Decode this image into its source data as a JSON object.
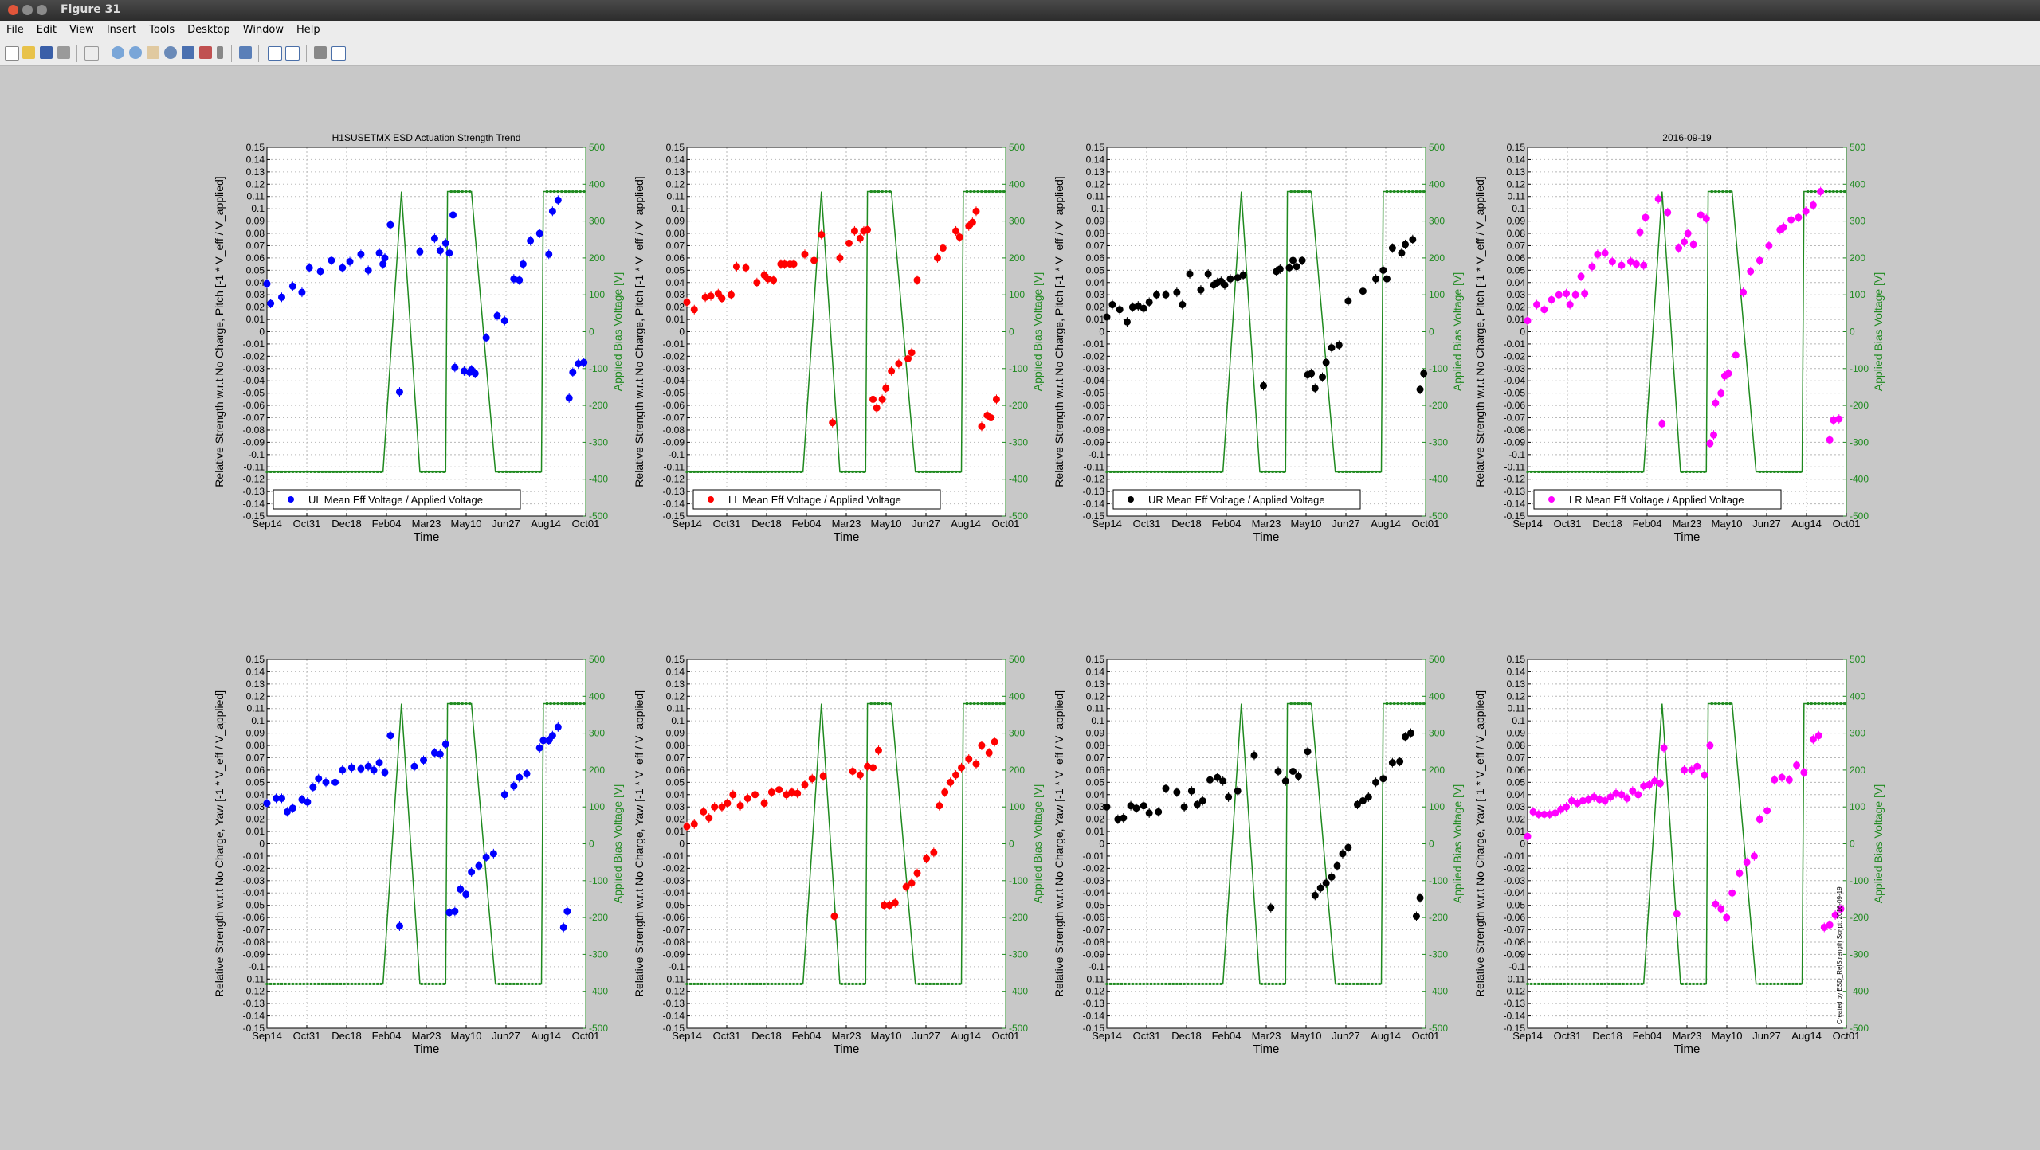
{
  "window": {
    "title": "Figure 31"
  },
  "menu": [
    "File",
    "Edit",
    "View",
    "Insert",
    "Tools",
    "Desktop",
    "Window",
    "Help"
  ],
  "toolbar": {
    "icons": [
      "new-figure-icon",
      "open-file-icon",
      "save-icon",
      "print-icon",
      "pointer-icon",
      "zoom-in-icon",
      "zoom-out-icon",
      "pan-icon",
      "rotate-3d-icon",
      "data-cursor-icon",
      "brush-icon",
      "link-plot-icon",
      "colorbar-icon",
      "legend-icon",
      "hide-plot-tools-icon",
      "show-plot-tools-icon"
    ]
  },
  "colors": {
    "fit_line": "#1f8a1f",
    "figure_bg": "#c8c8c8",
    "axes_bg": "#ffffff"
  },
  "side_annotation": "Created by ESD_RelStrength Script; 2016-09-19",
  "chart_data": [
    {
      "type": "scatter",
      "title": "H1SUSETMX ESD Actuation Strength Trend",
      "xlabel": "Time",
      "ylabel": "Relative Strength w.r.t No Charge, Pitch [-1 * V_eff / V_applied]",
      "y2label": "Applied Bias Voltage [V]",
      "legend": "UL Mean Eff Voltage / Applied Voltage",
      "color": "#0000ff",
      "ylim": [
        -0.15,
        0.15
      ],
      "y2lim": [
        -500,
        500
      ],
      "xticks": [
        "Sep14",
        "Oct31",
        "Dec18",
        "Feb04",
        "Mar23",
        "May10",
        "Jun27",
        "Aug14",
        "Oct01"
      ],
      "x": [
        0,
        2,
        8,
        14,
        19,
        23,
        29,
        35,
        41,
        45,
        51,
        55,
        61,
        63,
        64,
        67,
        72,
        83,
        91,
        94,
        97,
        99,
        101,
        102,
        107,
        110,
        111,
        113,
        119,
        125,
        129,
        134,
        137,
        139,
        143,
        148,
        153,
        155,
        158,
        164,
        166,
        169,
        172
      ],
      "y": [
        0.039,
        0.023,
        0.028,
        0.037,
        0.032,
        0.052,
        0.049,
        0.058,
        0.052,
        0.057,
        0.063,
        0.05,
        0.064,
        0.055,
        0.06,
        0.087,
        -0.049,
        0.065,
        0.076,
        0.066,
        0.072,
        0.064,
        0.095,
        -0.029,
        -0.032,
        -0.033,
        -0.031,
        -0.034,
        -0.005,
        0.013,
        0.009,
        0.043,
        0.042,
        0.055,
        0.074,
        0.08,
        0.063,
        0.098,
        0.107,
        -0.054,
        -0.033,
        -0.026,
        -0.025
      ]
    },
    {
      "type": "scatter",
      "title": "",
      "xlabel": "Time",
      "ylabel": "Relative Strength w.r.t No Charge, Pitch [-1 * V_eff / V_applied]",
      "y2label": "Applied Bias Voltage [V]",
      "legend": "LL Mean Eff Voltage / Applied Voltage",
      "color": "#ff0000",
      "ylim": [
        -0.15,
        0.15
      ],
      "y2lim": [
        -500,
        500
      ],
      "xticks": [
        "Sep14",
        "Oct31",
        "Dec18",
        "Feb04",
        "Mar23",
        "May10",
        "Jun27",
        "Aug14",
        "Oct01"
      ],
      "x": [
        0,
        4,
        10,
        13,
        17,
        19,
        24,
        27,
        32,
        38,
        42,
        44,
        47,
        51,
        53,
        56,
        58,
        64,
        69,
        73,
        79,
        83,
        88,
        91,
        94,
        96,
        98,
        101,
        103,
        106,
        108,
        111,
        115,
        120,
        122,
        125,
        136,
        139,
        146,
        148,
        153,
        155,
        157,
        160,
        163,
        165,
        168
      ],
      "y": [
        0.024,
        0.018,
        0.028,
        0.029,
        0.031,
        0.027,
        0.03,
        0.053,
        0.052,
        0.04,
        0.046,
        0.043,
        0.042,
        0.055,
        0.055,
        0.055,
        0.055,
        0.063,
        0.058,
        0.079,
        -0.074,
        0.06,
        0.072,
        0.082,
        0.076,
        0.082,
        0.083,
        -0.055,
        -0.062,
        -0.055,
        -0.046,
        -0.032,
        -0.026,
        -0.022,
        -0.017,
        0.042,
        0.06,
        0.068,
        0.082,
        0.077,
        0.086,
        0.089,
        0.098,
        -0.077,
        -0.068,
        -0.07,
        -0.055
      ]
    },
    {
      "type": "scatter",
      "title": "",
      "xlabel": "Time",
      "ylabel": "Relative Strength w.r.t No Charge, Pitch [-1 * V_eff / V_applied]",
      "y2label": "Applied Bias Voltage [V]",
      "legend": "UR Mean Eff Voltage / Applied Voltage",
      "color": "#000000",
      "ylim": [
        -0.15,
        0.15
      ],
      "y2lim": [
        -500,
        500
      ],
      "xticks": [
        "Sep14",
        "Oct31",
        "Dec18",
        "Feb04",
        "Mar23",
        "May10",
        "Jun27",
        "Aug14",
        "Oct01"
      ],
      "x": [
        0,
        3,
        7,
        11,
        14,
        17,
        20,
        23,
        27,
        32,
        38,
        41,
        45,
        51,
        55,
        58,
        60,
        62,
        64,
        67,
        71,
        74,
        85,
        92,
        94,
        99,
        101,
        103,
        106,
        109,
        111,
        113,
        117,
        119,
        122,
        126,
        131,
        139,
        146,
        150,
        152,
        155,
        160,
        162,
        166,
        170,
        172
      ],
      "y": [
        0.012,
        0.022,
        0.018,
        0.008,
        0.02,
        0.021,
        0.019,
        0.024,
        0.03,
        0.03,
        0.032,
        0.022,
        0.047,
        0.034,
        0.047,
        0.038,
        0.04,
        0.041,
        0.038,
        0.043,
        0.044,
        0.046,
        -0.044,
        0.049,
        0.051,
        0.052,
        0.058,
        0.053,
        0.058,
        -0.035,
        -0.034,
        -0.046,
        -0.037,
        -0.025,
        -0.013,
        -0.011,
        0.025,
        0.033,
        0.043,
        0.05,
        0.043,
        0.068,
        0.064,
        0.071,
        0.075,
        -0.047,
        -0.034
      ]
    },
    {
      "type": "scatter",
      "title": "2016-09-19",
      "xlabel": "Time",
      "ylabel": "Relative Strength w.r.t No Charge, Pitch [-1 * V_eff / V_applied]",
      "y2label": "Applied Bias Voltage [V]",
      "legend": "LR Mean Eff Voltage / Applied Voltage",
      "color": "#ff00ff",
      "ylim": [
        -0.15,
        0.15
      ],
      "y2lim": [
        -500,
        500
      ],
      "xticks": [
        "Sep14",
        "Oct31",
        "Dec18",
        "Feb04",
        "Mar23",
        "May10",
        "Jun27",
        "Aug14",
        "Oct01"
      ],
      "x": [
        0,
        5,
        9,
        13,
        17,
        21,
        23,
        26,
        29,
        31,
        35,
        38,
        42,
        46,
        51,
        56,
        59,
        61,
        63,
        64,
        71,
        73,
        76,
        82,
        85,
        87,
        90,
        94,
        97,
        99,
        101,
        102,
        105,
        107,
        109,
        113,
        117,
        121,
        126,
        131,
        137,
        139,
        143,
        147,
        151,
        155,
        159,
        164,
        166,
        169
      ],
      "y": [
        0.009,
        0.022,
        0.018,
        0.026,
        0.03,
        0.031,
        0.022,
        0.03,
        0.045,
        0.031,
        0.053,
        0.063,
        0.064,
        0.057,
        0.054,
        0.057,
        0.055,
        0.081,
        0.054,
        0.093,
        0.108,
        -0.075,
        0.097,
        0.068,
        0.073,
        0.08,
        0.071,
        0.095,
        0.092,
        -0.091,
        -0.084,
        -0.058,
        -0.05,
        -0.036,
        -0.034,
        -0.019,
        0.032,
        0.049,
        0.058,
        0.07,
        0.083,
        0.085,
        0.091,
        0.093,
        0.098,
        0.103,
        0.114,
        -0.088,
        -0.072,
        -0.071
      ]
    },
    {
      "type": "scatter",
      "title": "",
      "xlabel": "Time",
      "ylabel": "Relative Strength w.r.t No Charge, Yaw [-1 * V_eff / V_applied]",
      "y2label": "Applied Bias Voltage [V]",
      "legend": "",
      "color": "#0000ff",
      "ylim": [
        -0.15,
        0.15
      ],
      "y2lim": [
        -500,
        500
      ],
      "xticks": [
        "Sep14",
        "Oct31",
        "Dec18",
        "Feb04",
        "Mar23",
        "May10",
        "Jun27",
        "Aug14",
        "Oct01"
      ],
      "x": [
        0,
        5,
        8,
        11,
        14,
        19,
        22,
        25,
        28,
        32,
        37,
        41,
        46,
        51,
        55,
        58,
        61,
        64,
        67,
        72,
        80,
        85,
        91,
        94,
        97,
        99,
        102,
        105,
        108,
        111,
        115,
        119,
        123,
        129,
        134,
        137,
        141,
        148,
        150,
        153,
        155,
        158,
        161,
        163
      ],
      "y": [
        0.033,
        0.037,
        0.037,
        0.026,
        0.029,
        0.036,
        0.034,
        0.046,
        0.053,
        0.05,
        0.05,
        0.06,
        0.062,
        0.061,
        0.063,
        0.06,
        0.066,
        0.058,
        0.088,
        -0.067,
        0.063,
        0.068,
        0.074,
        0.073,
        0.081,
        -0.056,
        -0.055,
        -0.037,
        -0.041,
        -0.023,
        -0.018,
        -0.011,
        -0.008,
        0.04,
        0.047,
        0.054,
        0.057,
        0.078,
        0.084,
        0.084,
        0.088,
        0.095,
        -0.068,
        -0.055
      ]
    },
    {
      "type": "scatter",
      "title": "",
      "xlabel": "Time",
      "ylabel": "Relative Strength w.r.t No Charge, Yaw [-1 * V_eff / V_applied]",
      "y2label": "Applied Bias Voltage [V]",
      "legend": "",
      "color": "#ff0000",
      "ylim": [
        -0.15,
        0.15
      ],
      "y2lim": [
        -500,
        500
      ],
      "xticks": [
        "Sep14",
        "Oct31",
        "Dec18",
        "Feb04",
        "Mar23",
        "May10",
        "Jun27",
        "Aug14",
        "Oct01"
      ],
      "x": [
        0,
        4,
        9,
        12,
        15,
        19,
        22,
        25,
        29,
        33,
        37,
        42,
        46,
        50,
        54,
        57,
        60,
        64,
        68,
        74,
        80,
        90,
        94,
        98,
        101,
        104,
        107,
        110,
        113,
        119,
        122,
        125,
        130,
        134,
        137,
        140,
        143,
        146,
        149,
        153,
        157,
        160,
        164,
        167
      ],
      "y": [
        0.014,
        0.016,
        0.026,
        0.021,
        0.03,
        0.03,
        0.033,
        0.04,
        0.031,
        0.037,
        0.04,
        0.033,
        0.042,
        0.044,
        0.04,
        0.042,
        0.041,
        0.048,
        0.053,
        0.055,
        -0.059,
        0.059,
        0.056,
        0.063,
        0.062,
        0.076,
        -0.05,
        -0.05,
        -0.048,
        -0.035,
        -0.032,
        -0.024,
        -0.012,
        -0.007,
        0.031,
        0.042,
        0.05,
        0.056,
        0.062,
        0.069,
        0.065,
        0.08,
        0.074,
        0.083
      ]
    },
    {
      "type": "scatter",
      "title": "",
      "xlabel": "Time",
      "ylabel": "Relative Strength w.r.t No Charge, Yaw [-1 * V_eff / V_applied]",
      "y2label": "Applied Bias Voltage [V]",
      "legend": "",
      "color": "#000000",
      "ylim": [
        -0.15,
        0.15
      ],
      "y2lim": [
        -500,
        500
      ],
      "xticks": [
        "Sep14",
        "Oct31",
        "Dec18",
        "Feb04",
        "Mar23",
        "May10",
        "Jun27",
        "Aug14",
        "Oct01"
      ],
      "x": [
        0,
        6,
        9,
        13,
        16,
        20,
        23,
        28,
        32,
        38,
        42,
        46,
        49,
        52,
        56,
        60,
        63,
        66,
        71,
        80,
        89,
        93,
        97,
        101,
        104,
        109,
        113,
        116,
        119,
        122,
        125,
        128,
        131,
        136,
        139,
        142,
        146,
        150,
        155,
        159,
        162,
        165,
        168,
        170
      ],
      "y": [
        0.03,
        0.02,
        0.021,
        0.031,
        0.029,
        0.031,
        0.025,
        0.026,
        0.045,
        0.042,
        0.03,
        0.043,
        0.032,
        0.035,
        0.052,
        0.054,
        0.051,
        0.038,
        0.043,
        0.072,
        -0.052,
        0.059,
        0.051,
        0.059,
        0.055,
        0.075,
        -0.042,
        -0.036,
        -0.032,
        -0.027,
        -0.018,
        -0.008,
        -0.003,
        0.032,
        0.035,
        0.038,
        0.05,
        0.053,
        0.066,
        0.067,
        0.087,
        0.09,
        -0.059,
        -0.044
      ]
    },
    {
      "type": "scatter",
      "title": "",
      "xlabel": "Time",
      "ylabel": "Relative Strength w.r.t No Charge, Yaw [-1 * V_eff / V_applied]",
      "y2label": "Applied Bias Voltage [V]",
      "legend": "",
      "color": "#ff00ff",
      "ylim": [
        -0.15,
        0.15
      ],
      "y2lim": [
        -500,
        500
      ],
      "xticks": [
        "Sep14",
        "Oct31",
        "Dec18",
        "Feb04",
        "Mar23",
        "May10",
        "Jun27",
        "Aug14",
        "Oct01"
      ],
      "x": [
        0,
        3,
        6,
        9,
        12,
        15,
        18,
        21,
        24,
        27,
        30,
        33,
        36,
        39,
        42,
        45,
        48,
        51,
        54,
        57,
        60,
        63,
        66,
        69,
        72,
        74,
        81,
        85,
        89,
        92,
        96,
        99,
        102,
        105,
        108,
        111,
        115,
        119,
        123,
        126,
        130,
        134,
        138,
        142,
        146,
        150,
        155,
        158,
        161,
        164,
        167,
        170
      ],
      "y": [
        0.006,
        0.026,
        0.024,
        0.024,
        0.024,
        0.025,
        0.028,
        0.03,
        0.035,
        0.033,
        0.035,
        0.036,
        0.038,
        0.036,
        0.035,
        0.038,
        0.041,
        0.04,
        0.037,
        0.043,
        0.04,
        0.047,
        0.048,
        0.051,
        0.049,
        0.078,
        -0.057,
        0.06,
        0.06,
        0.063,
        0.056,
        0.08,
        -0.049,
        -0.053,
        -0.06,
        -0.04,
        -0.024,
        -0.015,
        -0.01,
        0.02,
        0.027,
        0.052,
        0.054,
        0.052,
        0.064,
        0.058,
        0.085,
        0.088,
        -0.068,
        -0.066,
        -0.058,
        -0.053
      ]
    }
  ],
  "voltage_series": {
    "x": [
      0,
      63,
      73,
      83,
      84,
      97,
      98,
      110,
      111,
      124,
      125,
      149,
      150,
      155,
      156,
      173
    ],
    "y": [
      -380,
      -380,
      380,
      -380,
      -380,
      -380,
      380,
      380,
      380,
      -380,
      -380,
      -380,
      380,
      380,
      380,
      380
    ]
  }
}
